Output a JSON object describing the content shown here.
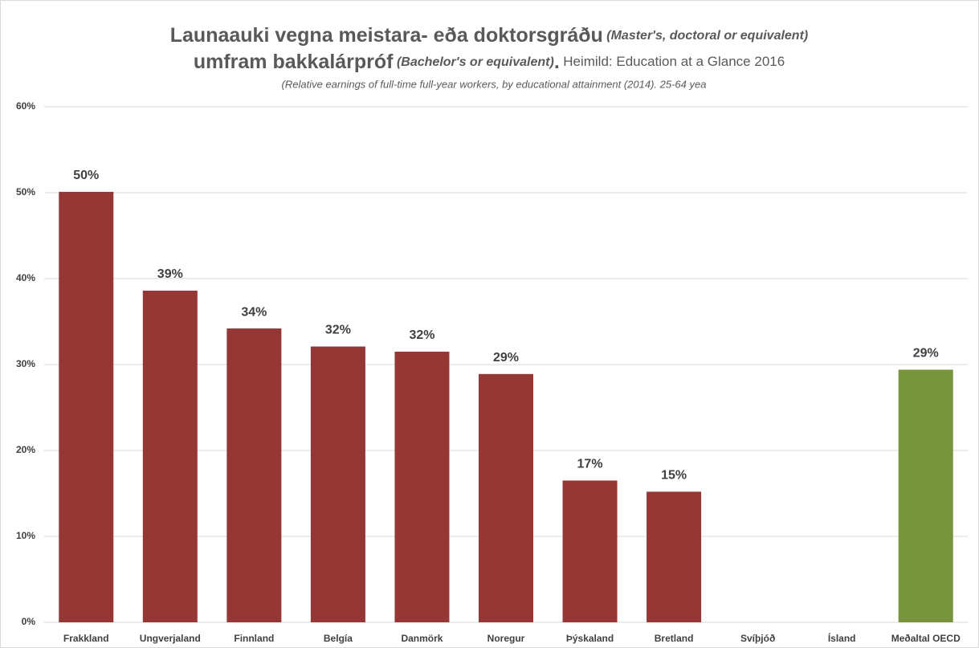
{
  "chart_data": {
    "type": "bar",
    "title_line1": [
      "Launaauki vegna meistara- eða doktorsgráðu",
      "(Master's, doctoral or equivalent)"
    ],
    "title_line2": [
      "umfram bakkalárpróf",
      "(Bachelor's or equivalent)",
      ".",
      "Heimild: Education at a Glance 2016"
    ],
    "subtitle": "(Relative earnings of full-time full-year workers, by educational attainment (2014). 25-64 yea",
    "categories": [
      "Frakkland",
      "Ungverjaland",
      "Finnland",
      "Belgía",
      "Danmörk",
      "Noregur",
      "Þýskaland",
      "Bretland",
      "Svíþjóð",
      "Ísland",
      "Meðaltal OECD"
    ],
    "values": [
      50.1,
      38.6,
      34.2,
      32.1,
      31.5,
      28.9,
      16.5,
      15.2,
      null,
      null,
      29.4
    ],
    "value_labels": [
      "50%",
      "39%",
      "34%",
      "32%",
      "32%",
      "29%",
      "17%",
      "15%",
      null,
      null,
      "29%"
    ],
    "colors": [
      "#953735",
      "#953735",
      "#953735",
      "#953735",
      "#953735",
      "#953735",
      "#953735",
      "#953735",
      "#953735",
      "#953735",
      "#77933c"
    ],
    "ylim": [
      0,
      60
    ],
    "yticks": [
      {
        "value": 0,
        "label": "0%"
      },
      {
        "value": 10,
        "label": "10%"
      },
      {
        "value": 20,
        "label": "20%"
      },
      {
        "value": 30,
        "label": "30%"
      },
      {
        "value": 40,
        "label": "40%"
      },
      {
        "value": 50,
        "label": "50%"
      },
      {
        "value": 60,
        "label": "60%"
      }
    ],
    "grid": true
  }
}
